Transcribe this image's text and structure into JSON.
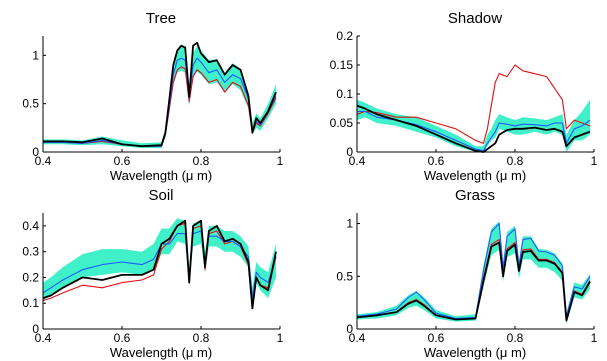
{
  "figure": {
    "panels": [
      {
        "title": "Tree",
        "xlabel": "Wavelength (μ m)"
      },
      {
        "title": "Shadow",
        "xlabel": "Wavelength (μ m)"
      },
      {
        "title": "Soil",
        "xlabel": "Wavelength (μ m)"
      },
      {
        "title": "Grass",
        "xlabel": "Wavelength (μ m)"
      }
    ]
  },
  "colors": {
    "band": "#40f0c8",
    "black": "#000000",
    "blue": "#1a5cff",
    "red": "#e01010"
  },
  "chart_data": [
    {
      "type": "line",
      "title": "Tree",
      "xlabel": "Wavelength (μ m)",
      "ylabel": "",
      "xlim": [
        0.4,
        1.0
      ],
      "ylim": [
        0,
        1.2
      ],
      "xticks": [
        0.4,
        0.6,
        0.8,
        1
      ],
      "xtick_labels": [
        "0.4",
        "0.6",
        "0.8",
        "1"
      ],
      "yticks": [
        0,
        0.5,
        1
      ],
      "ytick_labels": [
        "0",
        "0.5",
        "1"
      ],
      "x": [
        0.4,
        0.45,
        0.5,
        0.55,
        0.6,
        0.65,
        0.7,
        0.71,
        0.72,
        0.73,
        0.74,
        0.75,
        0.76,
        0.77,
        0.78,
        0.79,
        0.8,
        0.82,
        0.84,
        0.86,
        0.88,
        0.9,
        0.92,
        0.93,
        0.94,
        0.95,
        0.97,
        0.99
      ],
      "band": {
        "lower": [
          0.08,
          0.08,
          0.07,
          0.08,
          0.06,
          0.04,
          0.04,
          0.15,
          0.4,
          0.7,
          0.82,
          0.84,
          0.82,
          0.48,
          0.78,
          0.83,
          0.8,
          0.7,
          0.72,
          0.62,
          0.7,
          0.64,
          0.45,
          0.18,
          0.25,
          0.22,
          0.35,
          0.5
        ],
        "upper": [
          0.13,
          0.13,
          0.12,
          0.16,
          0.12,
          0.09,
          0.1,
          0.25,
          0.58,
          0.92,
          1.05,
          1.1,
          1.09,
          0.62,
          1.02,
          1.1,
          1.05,
          0.95,
          0.96,
          0.82,
          0.92,
          0.86,
          0.62,
          0.3,
          0.4,
          0.35,
          0.5,
          0.7
        ]
      },
      "series": [
        {
          "color": "black",
          "values": [
            0.11,
            0.11,
            0.1,
            0.14,
            0.08,
            0.06,
            0.07,
            0.2,
            0.55,
            0.9,
            1.05,
            1.1,
            1.08,
            0.57,
            1.1,
            1.13,
            1.02,
            0.93,
            0.95,
            0.8,
            0.9,
            0.85,
            0.58,
            0.2,
            0.35,
            0.3,
            0.42,
            0.62
          ]
        },
        {
          "color": "blue",
          "values": [
            0.1,
            0.1,
            0.09,
            0.12,
            0.08,
            0.06,
            0.06,
            0.19,
            0.48,
            0.8,
            0.95,
            0.97,
            0.95,
            0.55,
            0.9,
            0.97,
            0.93,
            0.82,
            0.85,
            0.72,
            0.8,
            0.76,
            0.55,
            0.22,
            0.32,
            0.28,
            0.42,
            0.58
          ]
        },
        {
          "color": "red",
          "values": [
            0.1,
            0.1,
            0.09,
            0.11,
            0.08,
            0.06,
            0.06,
            0.18,
            0.45,
            0.72,
            0.85,
            0.88,
            0.86,
            0.52,
            0.78,
            0.85,
            0.82,
            0.72,
            0.75,
            0.62,
            0.72,
            0.68,
            0.48,
            0.2,
            0.3,
            0.27,
            0.4,
            0.56
          ]
        }
      ]
    },
    {
      "type": "line",
      "title": "Shadow",
      "xlabel": "Wavelength (μ m)",
      "ylabel": "",
      "xlim": [
        0.4,
        1.0
      ],
      "ylim": [
        0,
        0.2
      ],
      "xticks": [
        0.4,
        0.6,
        0.8,
        1
      ],
      "xtick_labels": [
        "0.4",
        "0.6",
        "0.8",
        "1"
      ],
      "yticks": [
        0,
        0.05,
        0.1,
        0.15,
        0.2
      ],
      "ytick_labels": [
        "0",
        "0.05",
        "0.1",
        "0.15",
        "0.2"
      ],
      "x": [
        0.4,
        0.42,
        0.45,
        0.5,
        0.55,
        0.6,
        0.65,
        0.7,
        0.72,
        0.73,
        0.74,
        0.75,
        0.76,
        0.78,
        0.8,
        0.82,
        0.85,
        0.88,
        0.9,
        0.92,
        0.93,
        0.95,
        0.97,
        0.99
      ],
      "band": {
        "lower": [
          0.055,
          0.06,
          0.05,
          0.045,
          0.035,
          0.025,
          0.01,
          0.0,
          0.0,
          0.01,
          0.02,
          0.025,
          0.04,
          0.035,
          0.03,
          0.03,
          0.035,
          0.03,
          0.035,
          0.03,
          0.0,
          0.02,
          0.02,
          0.03
        ],
        "upper": [
          0.09,
          0.085,
          0.075,
          0.065,
          0.06,
          0.045,
          0.03,
          0.01,
          0.01,
          0.03,
          0.04,
          0.055,
          0.065,
          0.06,
          0.055,
          0.06,
          0.058,
          0.055,
          0.06,
          0.065,
          0.03,
          0.055,
          0.07,
          0.09
        ]
      },
      "series": [
        {
          "color": "black",
          "values": [
            0.08,
            0.075,
            0.065,
            0.055,
            0.045,
            0.03,
            0.015,
            0.002,
            0.0,
            0.005,
            0.01,
            0.015,
            0.03,
            0.038,
            0.04,
            0.04,
            0.042,
            0.038,
            0.04,
            0.035,
            0.01,
            0.025,
            0.03,
            0.035
          ]
        },
        {
          "color": "blue",
          "values": [
            0.07,
            0.07,
            0.06,
            0.055,
            0.047,
            0.035,
            0.02,
            0.005,
            0.002,
            0.015,
            0.025,
            0.035,
            0.05,
            0.048,
            0.045,
            0.048,
            0.047,
            0.045,
            0.05,
            0.05,
            0.015,
            0.04,
            0.045,
            0.055
          ]
        },
        {
          "color": "red",
          "values": [
            0.065,
            0.07,
            0.068,
            0.06,
            0.06,
            0.05,
            0.04,
            0.02,
            0.015,
            0.04,
            0.08,
            0.12,
            0.135,
            0.13,
            0.15,
            0.14,
            0.135,
            0.13,
            0.11,
            0.09,
            0.04,
            0.055,
            0.05,
            0.045
          ]
        }
      ]
    },
    {
      "type": "line",
      "title": "Soil",
      "xlabel": "Wavelength (μ m)",
      "ylabel": "",
      "xlim": [
        0.4,
        1.0
      ],
      "ylim": [
        0,
        0.45
      ],
      "xticks": [
        0.4,
        0.6,
        0.8,
        1
      ],
      "xtick_labels": [
        "0.4",
        "0.6",
        "0.8",
        "1"
      ],
      "yticks": [
        0,
        0.1,
        0.2,
        0.3,
        0.4
      ],
      "ytick_labels": [
        "0",
        "0.1",
        "0.2",
        "0.3",
        "0.4"
      ],
      "x": [
        0.4,
        0.42,
        0.45,
        0.5,
        0.55,
        0.6,
        0.65,
        0.68,
        0.7,
        0.72,
        0.74,
        0.76,
        0.77,
        0.78,
        0.8,
        0.81,
        0.82,
        0.84,
        0.86,
        0.88,
        0.9,
        0.92,
        0.93,
        0.94,
        0.95,
        0.97,
        0.99
      ],
      "band": {
        "lower": [
          0.11,
          0.13,
          0.16,
          0.2,
          0.21,
          0.22,
          0.21,
          0.23,
          0.29,
          0.29,
          0.34,
          0.33,
          0.17,
          0.32,
          0.33,
          0.22,
          0.32,
          0.32,
          0.3,
          0.3,
          0.28,
          0.24,
          0.1,
          0.18,
          0.15,
          0.12,
          0.2
        ],
        "upper": [
          0.18,
          0.2,
          0.24,
          0.29,
          0.31,
          0.31,
          0.3,
          0.33,
          0.39,
          0.39,
          0.43,
          0.42,
          0.24,
          0.41,
          0.42,
          0.3,
          0.4,
          0.4,
          0.38,
          0.38,
          0.36,
          0.32,
          0.16,
          0.26,
          0.24,
          0.22,
          0.33
        ]
      },
      "series": [
        {
          "color": "black",
          "values": [
            0.12,
            0.13,
            0.16,
            0.2,
            0.19,
            0.21,
            0.21,
            0.23,
            0.33,
            0.35,
            0.4,
            0.42,
            0.18,
            0.4,
            0.42,
            0.24,
            0.38,
            0.4,
            0.34,
            0.35,
            0.33,
            0.26,
            0.08,
            0.2,
            0.17,
            0.15,
            0.3
          ]
        },
        {
          "color": "blue",
          "values": [
            0.14,
            0.16,
            0.19,
            0.23,
            0.25,
            0.26,
            0.25,
            0.27,
            0.33,
            0.33,
            0.37,
            0.37,
            0.2,
            0.37,
            0.38,
            0.26,
            0.36,
            0.36,
            0.34,
            0.34,
            0.32,
            0.28,
            0.12,
            0.22,
            0.2,
            0.18,
            0.28
          ]
        },
        {
          "color": "red",
          "values": [
            0.11,
            0.12,
            0.14,
            0.17,
            0.16,
            0.18,
            0.19,
            0.21,
            0.31,
            0.34,
            0.4,
            0.41,
            0.18,
            0.39,
            0.4,
            0.23,
            0.37,
            0.38,
            0.33,
            0.34,
            0.32,
            0.25,
            0.09,
            0.2,
            0.17,
            0.16,
            0.28
          ]
        }
      ]
    },
    {
      "type": "line",
      "title": "Grass",
      "xlabel": "Wavelength (μ m)",
      "ylabel": "",
      "xlim": [
        0.4,
        1.0
      ],
      "ylim": [
        0,
        1.1
      ],
      "xticks": [
        0.4,
        0.6,
        0.8,
        1
      ],
      "xtick_labels": [
        "0.4",
        "0.6",
        "0.8",
        "1"
      ],
      "yticks": [
        0,
        0.5,
        1
      ],
      "ytick_labels": [
        "0",
        "0.5",
        "1"
      ],
      "x": [
        0.4,
        0.45,
        0.5,
        0.53,
        0.55,
        0.57,
        0.6,
        0.65,
        0.7,
        0.72,
        0.74,
        0.76,
        0.77,
        0.78,
        0.8,
        0.81,
        0.82,
        0.84,
        0.86,
        0.88,
        0.9,
        0.92,
        0.93,
        0.95,
        0.97,
        0.99
      ],
      "band": {
        "lower": [
          0.09,
          0.1,
          0.13,
          0.2,
          0.22,
          0.18,
          0.1,
          0.07,
          0.08,
          0.4,
          0.7,
          0.75,
          0.45,
          0.68,
          0.72,
          0.48,
          0.66,
          0.66,
          0.58,
          0.58,
          0.54,
          0.46,
          0.05,
          0.3,
          0.28,
          0.38
        ],
        "upper": [
          0.14,
          0.16,
          0.22,
          0.32,
          0.36,
          0.3,
          0.18,
          0.12,
          0.14,
          0.6,
          0.95,
          1.02,
          0.62,
          0.92,
          0.98,
          0.64,
          0.88,
          0.88,
          0.76,
          0.75,
          0.72,
          0.62,
          0.15,
          0.44,
          0.42,
          0.52
        ]
      },
      "series": [
        {
          "color": "black",
          "values": [
            0.11,
            0.13,
            0.16,
            0.24,
            0.27,
            0.22,
            0.13,
            0.09,
            0.1,
            0.45,
            0.78,
            0.82,
            0.5,
            0.74,
            0.8,
            0.55,
            0.73,
            0.74,
            0.65,
            0.65,
            0.62,
            0.53,
            0.08,
            0.35,
            0.32,
            0.45
          ]
        },
        {
          "color": "blue",
          "values": [
            0.12,
            0.14,
            0.19,
            0.3,
            0.35,
            0.28,
            0.15,
            0.1,
            0.11,
            0.55,
            0.92,
            1.0,
            0.58,
            0.88,
            0.95,
            0.6,
            0.85,
            0.86,
            0.74,
            0.73,
            0.7,
            0.6,
            0.12,
            0.4,
            0.38,
            0.5
          ]
        },
        {
          "color": "red",
          "values": [
            0.11,
            0.13,
            0.16,
            0.25,
            0.28,
            0.23,
            0.13,
            0.09,
            0.1,
            0.48,
            0.8,
            0.85,
            0.52,
            0.76,
            0.82,
            0.56,
            0.75,
            0.76,
            0.66,
            0.66,
            0.63,
            0.54,
            0.09,
            0.36,
            0.33,
            0.46
          ]
        }
      ]
    }
  ]
}
